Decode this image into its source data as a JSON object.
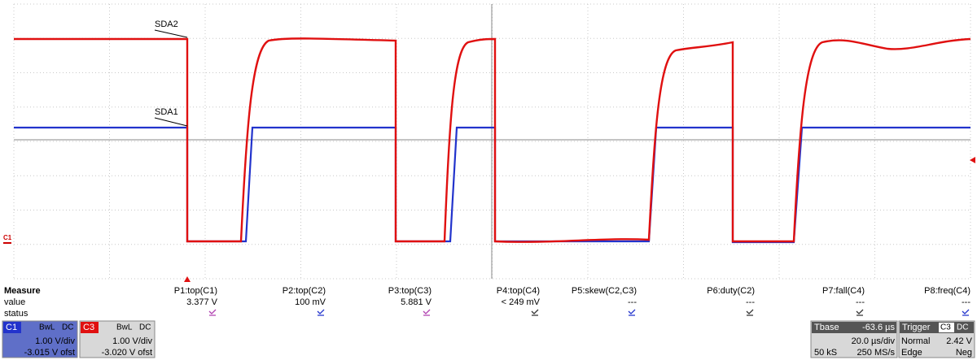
{
  "traces": [
    {
      "label": "SDA2"
    },
    {
      "label": "SDA1"
    }
  ],
  "marker": "C1",
  "measure": {
    "headers": [
      "Measure",
      "value",
      "status"
    ],
    "params": [
      {
        "name": "P1:top(C1)",
        "value": "3.377 V"
      },
      {
        "name": "P2:top(C2)",
        "value": "100 mV"
      },
      {
        "name": "P3:top(C3)",
        "value": "5.881 V"
      },
      {
        "name": "P4:top(C4)",
        "value": "< 249 mV"
      },
      {
        "name": "P5:skew(C2,C3)",
        "value": "---"
      },
      {
        "name": "P6:duty(C2)",
        "value": "---"
      },
      {
        "name": "P7:fall(C4)",
        "value": "---"
      },
      {
        "name": "P8:freq(C4)",
        "value": "---"
      }
    ]
  },
  "channels": [
    {
      "id": "C1",
      "bw": "BwL",
      "coupling": "DC",
      "scale": "1.00 V/div",
      "offset": "-3.015 V ofst"
    },
    {
      "id": "C3",
      "bw": "BwL",
      "coupling": "DC",
      "scale": "1.00 V/div",
      "offset": "-3.020 V ofst"
    }
  ],
  "timebase": {
    "label": "Tbase",
    "delay": "-63.6 µs",
    "scale": "20.0 µs/div",
    "samples": "50 kS",
    "rate": "250 MS/s"
  },
  "trigger": {
    "label": "Trigger",
    "source": "C3",
    "coupling": "DC",
    "mode": "Normal",
    "level": "2.42 V",
    "type": "Edge",
    "slope": "Neg"
  }
}
